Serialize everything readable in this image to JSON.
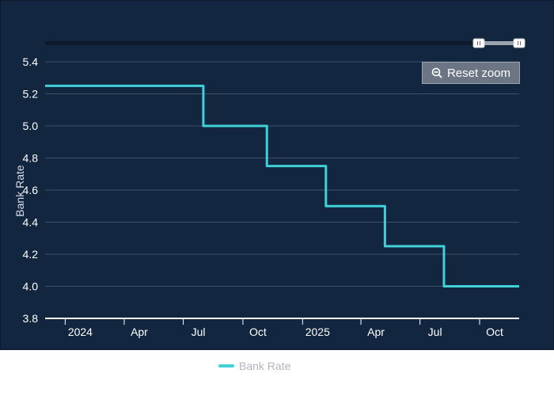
{
  "colors": {
    "panel_bg": "#13263f",
    "grid": "#3d5068",
    "series": "#3fd0d8",
    "navigator_track": "#0c1a2c",
    "navigator_range": "#9aa3ae"
  },
  "toolbar": {
    "reset_zoom_label": "Reset zoom",
    "reset_zoom_icon": "zoom-out-icon"
  },
  "chart_data": {
    "type": "line",
    "step": true,
    "title": "",
    "xlabel": "",
    "ylabel": "Bank Rate",
    "ylim": [
      3.8,
      5.4
    ],
    "xlim": [
      "2023-12-01",
      "2025-12-01"
    ],
    "yticks": [
      "3.8",
      "4.0",
      "4.2",
      "4.4",
      "4.6",
      "4.8",
      "5.0",
      "5.2",
      "5.4"
    ],
    "xticks": [
      {
        "date": "2024-01-01",
        "label": "2024"
      },
      {
        "date": "2024-04-01",
        "label": "Apr"
      },
      {
        "date": "2024-07-01",
        "label": "Jul"
      },
      {
        "date": "2024-10-01",
        "label": "Oct"
      },
      {
        "date": "2025-01-01",
        "label": "2025"
      },
      {
        "date": "2025-04-01",
        "label": "Apr"
      },
      {
        "date": "2025-07-01",
        "label": "Jul"
      },
      {
        "date": "2025-10-01",
        "label": "Oct"
      }
    ],
    "grid": true,
    "legend_position": "bottom-center",
    "series": [
      {
        "name": "Bank Rate",
        "x": [
          "2023-12-01",
          "2024-08-01",
          "2024-11-07",
          "2025-02-06",
          "2025-05-08",
          "2025-08-07",
          "2025-12-01"
        ],
        "values": [
          5.25,
          5.0,
          4.75,
          4.5,
          4.25,
          4.0,
          4.0
        ]
      }
    ]
  }
}
